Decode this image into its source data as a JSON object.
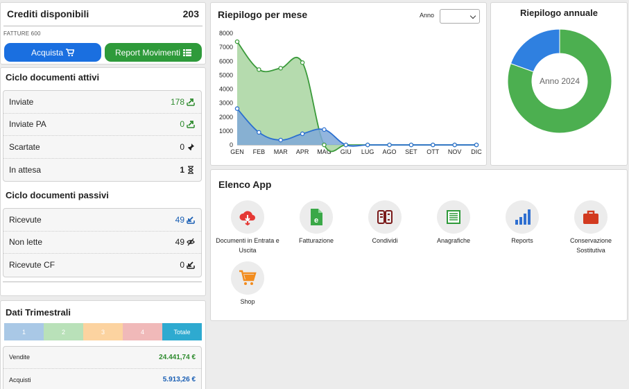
{
  "credits": {
    "title": "Crediti disponibili",
    "value": "203",
    "subtitle": "FATTURE 600",
    "buy_label": "Acquista",
    "report_label": "Report Movimenti"
  },
  "active_cycle": {
    "title": "Ciclo documenti attivi",
    "rows": [
      {
        "label": "Inviate",
        "value": "178"
      },
      {
        "label": "Inviate PA",
        "value": "0"
      },
      {
        "label": "Scartate",
        "value": "0"
      },
      {
        "label": "In attesa",
        "value": "1"
      }
    ]
  },
  "passive_cycle": {
    "title": "Ciclo documenti passivi",
    "rows": [
      {
        "label": "Ricevute",
        "value": "49"
      },
      {
        "label": "Non lette",
        "value": "49"
      },
      {
        "label": "Ricevute CF",
        "value": "0"
      }
    ]
  },
  "quarterly": {
    "title": "Dati Trimestrali",
    "tabs": [
      "1",
      "2",
      "3",
      "4",
      "Totale"
    ],
    "rows": [
      {
        "label": "Vendite",
        "value": "24.441,74 €"
      },
      {
        "label": "Acquisti",
        "value": "5.913,26 €"
      }
    ]
  },
  "monthly": {
    "title": "Riepilogo per mese",
    "year_label": "Anno",
    "year_selected": ""
  },
  "chart_data": [
    {
      "type": "area",
      "title": "Riepilogo per mese",
      "categories": [
        "GEN",
        "FEB",
        "MAR",
        "APR",
        "MAG",
        "GIU",
        "LUG",
        "AGO",
        "SET",
        "OTT",
        "NOV",
        "DIC"
      ],
      "ylim": [
        0,
        8000
      ],
      "yticks": [
        0,
        1000,
        2000,
        3000,
        4000,
        5000,
        6000,
        7000,
        8000
      ],
      "series": [
        {
          "color": "#3a9a3a",
          "fill": "#a8d5a0",
          "values": [
            7400,
            5400,
            5500,
            5900,
            0,
            0,
            0,
            0,
            0,
            0,
            0,
            0
          ]
        },
        {
          "color": "#2a6fd0",
          "fill": "#7fa8d8",
          "values": [
            2600,
            900,
            350,
            800,
            1100,
            0,
            0,
            0,
            0,
            0,
            0,
            0
          ]
        }
      ]
    },
    {
      "type": "pie",
      "title": "Riepilogo annuale",
      "center_label": "Anno 2024",
      "slices": [
        {
          "value": 80.5,
          "color": "#4caf50"
        },
        {
          "value": 19.5,
          "color": "#2f80e0"
        }
      ]
    }
  ],
  "apps": {
    "title": "Elenco App",
    "items": [
      {
        "label": "Documenti in Entrata e Uscita",
        "icon": "cloud-transfer-icon"
      },
      {
        "label": "Fatturazione",
        "icon": "invoice-file-icon"
      },
      {
        "label": "Condividi",
        "icon": "share-icon"
      },
      {
        "label": "Anagrafiche",
        "icon": "list-sheet-icon"
      },
      {
        "label": "Reports",
        "icon": "bar-chart-icon"
      },
      {
        "label": "Conservazione Sostitutiva",
        "icon": "briefcase-icon"
      },
      {
        "label": "Shop",
        "icon": "shopping-cart-icon"
      }
    ]
  }
}
